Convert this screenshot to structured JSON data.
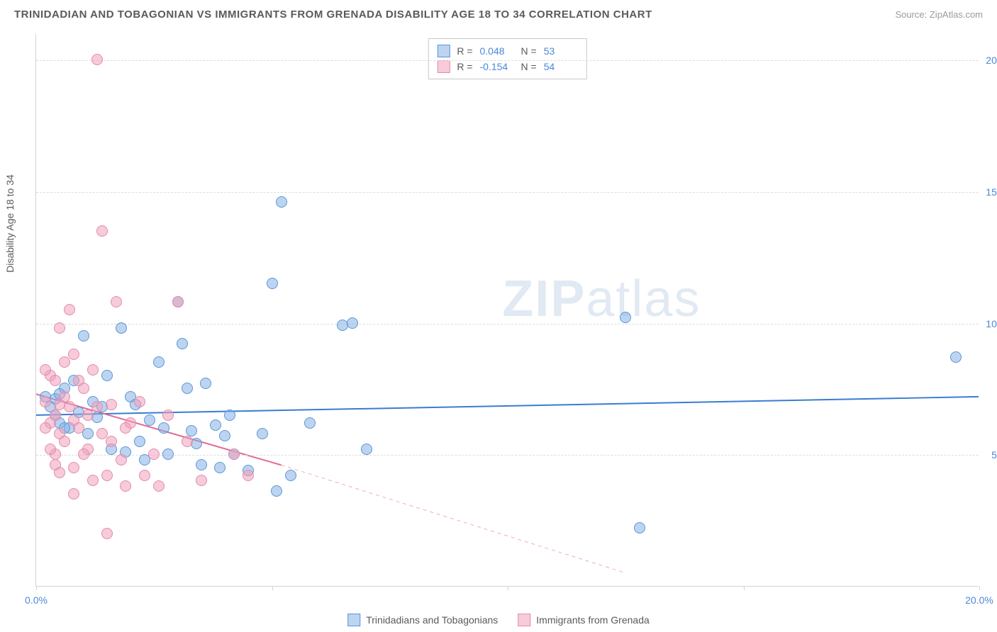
{
  "header": {
    "title": "TRINIDADIAN AND TOBAGONIAN VS IMMIGRANTS FROM GRENADA DISABILITY AGE 18 TO 34 CORRELATION CHART",
    "source": "Source: ZipAtlas.com"
  },
  "chart": {
    "type": "scatter",
    "ylabel": "Disability Age 18 to 34",
    "xlim": [
      0,
      20
    ],
    "ylim": [
      0,
      21
    ],
    "xticks": [
      0,
      5,
      10,
      15,
      20
    ],
    "xtick_labels": [
      "0.0%",
      "",
      "",
      "",
      "20.0%"
    ],
    "yticks": [
      5,
      10,
      15,
      20
    ],
    "ytick_labels": [
      "5.0%",
      "10.0%",
      "15.0%",
      "20.0%"
    ],
    "grid_color": "#dcdcdc",
    "axis_color": "#d4d4d4",
    "background_color": "#ffffff",
    "watermark": {
      "bold": "ZIP",
      "rest": "atlas"
    },
    "series": [
      {
        "name": "Trinidadians and Tobagonians",
        "color_fill": "rgba(134,176,228,0.55)",
        "color_stroke": "#5a96d8",
        "r_value": "0.048",
        "n_value": "53",
        "trend": {
          "x1": 0,
          "y1": 6.5,
          "x2": 20,
          "y2": 7.2,
          "color": "#3a7cd0",
          "width": 2,
          "dash": "none"
        },
        "points": [
          [
            0.3,
            6.8
          ],
          [
            0.4,
            7.1
          ],
          [
            0.5,
            6.2
          ],
          [
            0.6,
            7.5
          ],
          [
            0.7,
            6.0
          ],
          [
            0.8,
            7.8
          ],
          [
            0.9,
            6.6
          ],
          [
            1.0,
            9.5
          ],
          [
            1.1,
            5.8
          ],
          [
            1.2,
            7.0
          ],
          [
            1.3,
            6.4
          ],
          [
            1.5,
            8.0
          ],
          [
            1.6,
            5.2
          ],
          [
            1.8,
            9.8
          ],
          [
            2.0,
            7.2
          ],
          [
            2.2,
            5.5
          ],
          [
            2.4,
            6.3
          ],
          [
            2.6,
            8.5
          ],
          [
            2.8,
            5.0
          ],
          [
            3.0,
            10.8
          ],
          [
            3.1,
            9.2
          ],
          [
            3.2,
            7.5
          ],
          [
            3.4,
            5.4
          ],
          [
            3.5,
            4.6
          ],
          [
            3.8,
            6.1
          ],
          [
            3.9,
            4.5
          ],
          [
            4.0,
            5.7
          ],
          [
            4.2,
            5.0
          ],
          [
            4.5,
            4.4
          ],
          [
            4.8,
            5.8
          ],
          [
            5.0,
            11.5
          ],
          [
            5.1,
            3.6
          ],
          [
            5.2,
            14.6
          ],
          [
            5.4,
            4.2
          ],
          [
            5.8,
            6.2
          ],
          [
            6.5,
            9.9
          ],
          [
            6.7,
            10.0
          ],
          [
            7.0,
            5.2
          ],
          [
            12.5,
            10.2
          ],
          [
            12.8,
            2.2
          ],
          [
            19.5,
            8.7
          ],
          [
            1.4,
            6.8
          ],
          [
            0.5,
            7.3
          ],
          [
            2.1,
            6.9
          ],
          [
            3.6,
            7.7
          ],
          [
            4.1,
            6.5
          ],
          [
            1.9,
            5.1
          ],
          [
            2.3,
            4.8
          ],
          [
            2.7,
            6.0
          ],
          [
            3.3,
            5.9
          ],
          [
            0.4,
            6.5
          ],
          [
            0.6,
            6.0
          ],
          [
            0.2,
            7.2
          ]
        ]
      },
      {
        "name": "Immigrants from Grenada",
        "color_fill": "rgba(240,160,185,0.55)",
        "color_stroke": "#e38bac",
        "r_value": "-0.154",
        "n_value": "54",
        "trend": {
          "x1": 0,
          "y1": 7.3,
          "x2": 5.2,
          "y2": 4.6,
          "color": "#e06a95",
          "width": 2,
          "dash": "none"
        },
        "trend_ext": {
          "x1": 5.2,
          "y1": 4.6,
          "x2": 12.5,
          "y2": 0.5,
          "color": "#f0a8bf",
          "width": 1,
          "dash": "5,5"
        },
        "points": [
          [
            0.2,
            7.0
          ],
          [
            0.3,
            8.0
          ],
          [
            0.4,
            6.5
          ],
          [
            0.5,
            9.8
          ],
          [
            0.5,
            5.8
          ],
          [
            0.6,
            7.2
          ],
          [
            0.7,
            10.5
          ],
          [
            0.8,
            8.8
          ],
          [
            0.8,
            4.5
          ],
          [
            0.9,
            6.0
          ],
          [
            1.0,
            7.5
          ],
          [
            1.1,
            5.2
          ],
          [
            1.2,
            4.0
          ],
          [
            1.3,
            6.8
          ],
          [
            1.4,
            13.5
          ],
          [
            1.5,
            4.2
          ],
          [
            1.5,
            2.0
          ],
          [
            1.6,
            5.5
          ],
          [
            1.7,
            10.8
          ],
          [
            1.8,
            4.8
          ],
          [
            1.9,
            3.8
          ],
          [
            2.0,
            6.2
          ],
          [
            2.2,
            7.0
          ],
          [
            2.3,
            4.2
          ],
          [
            2.5,
            5.0
          ],
          [
            2.8,
            6.5
          ],
          [
            3.0,
            10.8
          ],
          [
            3.2,
            5.5
          ],
          [
            3.5,
            4.0
          ],
          [
            4.2,
            5.0
          ],
          [
            4.5,
            4.2
          ],
          [
            1.3,
            20.0
          ],
          [
            0.3,
            6.2
          ],
          [
            0.4,
            5.0
          ],
          [
            0.5,
            4.3
          ],
          [
            0.6,
            5.5
          ],
          [
            0.7,
            6.8
          ],
          [
            0.8,
            3.5
          ],
          [
            0.9,
            7.8
          ],
          [
            1.0,
            5.0
          ],
          [
            1.1,
            6.5
          ],
          [
            1.2,
            8.2
          ],
          [
            0.4,
            7.8
          ],
          [
            0.5,
            6.9
          ],
          [
            0.6,
            8.5
          ],
          [
            0.3,
            5.2
          ],
          [
            0.2,
            6.0
          ],
          [
            0.2,
            8.2
          ],
          [
            0.4,
            4.6
          ],
          [
            0.8,
            6.3
          ],
          [
            1.6,
            6.9
          ],
          [
            1.4,
            5.8
          ],
          [
            2.6,
            3.8
          ],
          [
            1.9,
            6.0
          ]
        ]
      }
    ],
    "legend_bottom": [
      {
        "label": "Trinidadians and Tobagonians",
        "fill": "rgba(134,176,228,0.55)",
        "stroke": "#5a96d8"
      },
      {
        "label": "Immigrants from Grenada",
        "fill": "rgba(240,160,185,0.55)",
        "stroke": "#e38bac"
      }
    ]
  }
}
